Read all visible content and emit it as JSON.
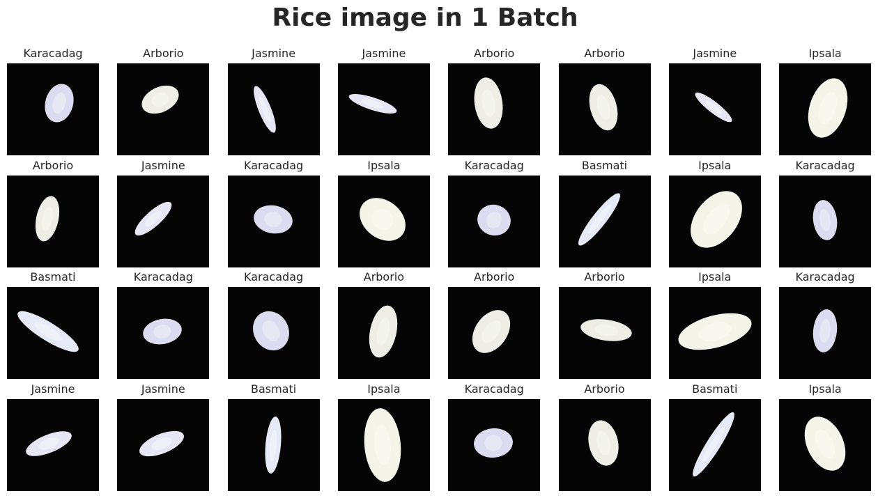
{
  "title": "Rice image in 1 Batch",
  "colors": {
    "background": "#050505",
    "Karacadag": "#dcdcf0",
    "Arborio": "#eeeee6",
    "Jasmine": "#e6e6f4",
    "Ipsala": "#f4f4e8",
    "Basmati": "#e6eaf6"
  },
  "images": [
    {
      "label": "Karacadag"
    },
    {
      "label": "Arborio"
    },
    {
      "label": "Jasmine"
    },
    {
      "label": "Jasmine"
    },
    {
      "label": "Arborio"
    },
    {
      "label": "Arborio"
    },
    {
      "label": "Jasmine"
    },
    {
      "label": "Ipsala"
    },
    {
      "label": "Arborio"
    },
    {
      "label": "Jasmine"
    },
    {
      "label": "Karacadag"
    },
    {
      "label": "Ipsala"
    },
    {
      "label": "Karacadag"
    },
    {
      "label": "Basmati"
    },
    {
      "label": "Ipsala"
    },
    {
      "label": "Karacadag"
    },
    {
      "label": "Basmati"
    },
    {
      "label": "Karacadag"
    },
    {
      "label": "Karacadag"
    },
    {
      "label": "Arborio"
    },
    {
      "label": "Arborio"
    },
    {
      "label": "Arborio"
    },
    {
      "label": "Ipsala"
    },
    {
      "label": "Karacadag"
    },
    {
      "label": "Jasmine"
    },
    {
      "label": "Jasmine"
    },
    {
      "label": "Basmati"
    },
    {
      "label": "Ipsala"
    },
    {
      "label": "Karacadag"
    },
    {
      "label": "Arborio"
    },
    {
      "label": "Basmati"
    },
    {
      "label": "Ipsala"
    }
  ]
}
